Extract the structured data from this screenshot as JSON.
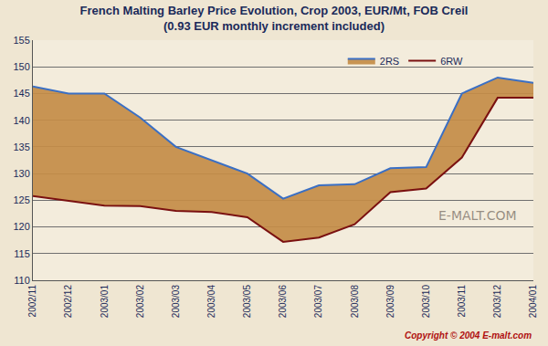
{
  "chart_data": {
    "type": "area",
    "title": "French Malting Barley Price Evolution, Crop 2003, EUR/Mt, FOB Creil",
    "subtitle": "(0.93 EUR monthly increment included)",
    "categories": [
      "2002/11",
      "2002/12",
      "2003/01",
      "2003/02",
      "2003/03",
      "2003/04",
      "2003/05",
      "2003/06",
      "2003/07",
      "2003/08",
      "2003/09",
      "2003/10",
      "2003/11",
      "2003/12",
      "2004/01"
    ],
    "series": [
      {
        "name": "6RW",
        "color": "#7a1010",
        "values": [
          125.8,
          124.9,
          124.0,
          123.9,
          123.0,
          122.8,
          121.8,
          117.2,
          118.0,
          120.5,
          126.5,
          127.2,
          133.0,
          144.2,
          144.2
        ]
      },
      {
        "name": "2RS",
        "color": "#3a6fc4",
        "values": [
          146.3,
          145.0,
          145.0,
          140.5,
          135.0,
          132.5,
          130.0,
          125.3,
          127.8,
          128.0,
          131.0,
          131.2,
          145.0,
          148.0,
          147.0
        ]
      }
    ],
    "ylim": [
      110,
      155
    ],
    "yticks": [
      110,
      115,
      120,
      125,
      130,
      135,
      140,
      145,
      150,
      155
    ],
    "grid": true,
    "legend": "top right",
    "annotations": [
      "E-MALT.COM",
      "Copyright © 2004 E-malt.com"
    ]
  }
}
